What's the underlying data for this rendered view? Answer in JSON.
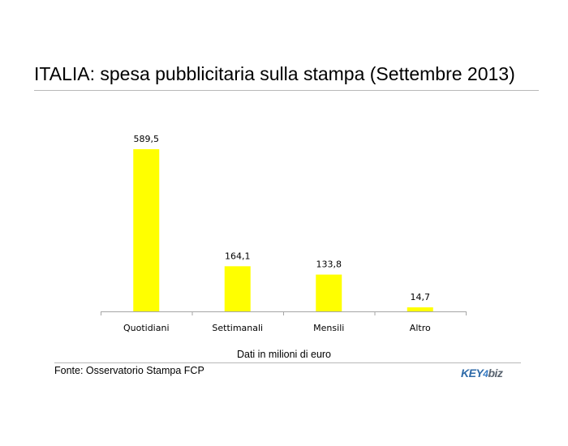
{
  "title": "ITALIA: spesa pubblicitaria sulla stampa (Settembre 2013)",
  "unit_note": "Dati in milioni di euro",
  "source": "Fonte: Osservatorio Stampa FCP",
  "logo": {
    "part1": "KEY",
    "part2": "4",
    "part3": "biz"
  },
  "colors": {
    "bar": "#ffff00",
    "axis": "#a6a6a6"
  },
  "chart_data": {
    "type": "bar",
    "categories": [
      "Quotidiani",
      "Settimanali",
      "Mensili",
      "Altro"
    ],
    "values": [
      589.5,
      164.1,
      133.8,
      14.7
    ],
    "value_labels": [
      "589,5",
      "164,1",
      "133,8",
      "14,7"
    ],
    "title": "ITALIA: spesa pubblicitaria sulla stampa (Settembre 2013)",
    "xlabel": "",
    "ylabel": "",
    "ylim": [
      0,
      589.5
    ],
    "grid": false,
    "legend": "none"
  }
}
